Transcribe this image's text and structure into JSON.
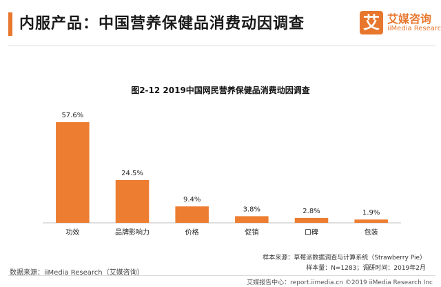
{
  "header": {
    "title": "内服产品：中国营养保健品消费动因调查",
    "logo_mark": "艾",
    "logo_name": "艾媒咨询",
    "logo_sub": "iiMedia Research"
  },
  "colors": {
    "accent": "#e8772e",
    "bar": "#ed7d31"
  },
  "chart_data": {
    "type": "bar",
    "title": "图2-12 2019中国网民营养保健品消费动因调查",
    "categories": [
      "功效",
      "品牌影响力",
      "价格",
      "促销",
      "口碑",
      "包装"
    ],
    "values": [
      57.6,
      24.5,
      9.4,
      3.8,
      2.8,
      1.9
    ],
    "value_labels": [
      "57.6%",
      "24.5%",
      "9.4%",
      "3.8%",
      "2.8%",
      "1.9%"
    ],
    "unit": "%",
    "ylim": [
      0,
      60
    ],
    "grid": false,
    "legend": "none"
  },
  "footer": {
    "source": "数据来源：iiMedia Research（艾媒咨询）",
    "note_source": "样本来源：草莓派数据调查与计算系统（Strawberry Pie）",
    "note_sample": "样本量：N=1283；调研时间：2019年2月",
    "url_line": "艾媒报告中心：report.iimedia.cn ©2019 iiMedia Research Inc"
  }
}
